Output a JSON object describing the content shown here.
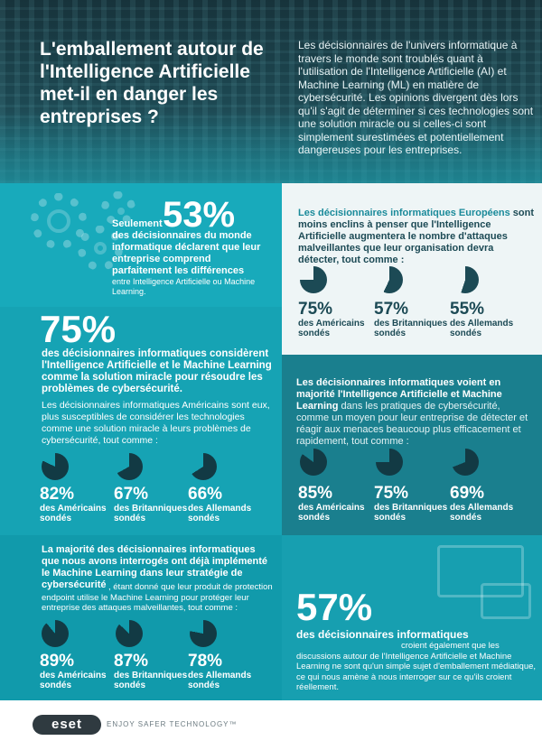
{
  "header": {
    "title": "L'emballement autour de l'Intelligence Artificielle met-il en danger les entreprises ?",
    "intro": "Les décisionnaires de l'univers informatique à travers le monde sont troublés quant à l'utilisation de l'Intelligence Artificielle (AI) et Machine Learning (ML) en matière de cybersécurité. Les opinions divergent dès lors qu'il s'agit de déterminer si ces technologies sont une solution miracle ou si celles-ci sont simplement surestimées et potentiellement dangereuses pour les entreprises."
  },
  "block1": {
    "prefix": "Seulement",
    "stat": "53%",
    "text": "des décisionnaires du monde informatique déclarent que leur entreprise comprend parfaitement les différences",
    "small": "entre Intelligence Artificielle ou Machine Learning."
  },
  "block2": {
    "stat": "75%",
    "lead": "des décisionnaires informatiques considèrent l'Intelligence Artificielle et le Machine Learning comme la solution miracle pour résoudre les problèmes de cybersécurité.",
    "body": "Les décisionnaires informatiques Américains sont eux, plus susceptibles de considérer les technologies comme une solution miracle à leurs problèmes de cybersécurité, tout comme :",
    "items": [
      {
        "pct": "82%",
        "label": "des Américains sondés",
        "value": 82
      },
      {
        "pct": "67%",
        "label": "des Britanniques sondés",
        "value": 67
      },
      {
        "pct": "66%",
        "label": "des Allemands sondés",
        "value": 66
      }
    ]
  },
  "block3": {
    "lead": "La majorité des décisionnaires informatiques que nous avons interrogés ont déjà implémenté le Machine Learning dans leur stratégie de cybersécurité",
    "body": ", étant donné que leur produit de protection endpoint utilise le Machine Learning pour protéger leur entreprise des attaques malveillantes, tout comme :",
    "items": [
      {
        "pct": "89%",
        "label": "des Américains sondés",
        "value": 89
      },
      {
        "pct": "87%",
        "label": "des Britanniques sondés",
        "value": 87
      },
      {
        "pct": "78%",
        "label": "des Allemands sondés",
        "value": 78
      }
    ]
  },
  "block4": {
    "lead": "Les décisionnaires informatiques Européens",
    "body": "sont moins enclins à penser que l'Intelligence Artificielle augmentera le nombre d'attaques malveillantes que leur organisation devra détecter, tout comme :",
    "items": [
      {
        "pct": "75%",
        "label": "des Américains sondés",
        "value": 75
      },
      {
        "pct": "57%",
        "label": "des Britanniques sondés",
        "value": 57
      },
      {
        "pct": "55%",
        "label": "des Allemands sondés",
        "value": 55
      }
    ]
  },
  "block5": {
    "lead": "Les décisionnaires informatiques voient en majorité l'Intelligence Artificielle et Machine Learning",
    "body": "dans les pratiques de cybersécurité, comme un moyen pour leur entreprise de détecter et réagir aux menaces beaucoup plus efficacement et rapidement, tout comme :",
    "items": [
      {
        "pct": "85%",
        "label": "des Américains sondés",
        "value": 85
      },
      {
        "pct": "75%",
        "label": "des Britanniques sondés",
        "value": 75
      },
      {
        "pct": "69%",
        "label": "des Allemands sondés",
        "value": 69
      }
    ]
  },
  "block6": {
    "stat": "57%",
    "lead": "des décisionnaires informatiques",
    "body": "croient également que les discussions autour de l'Intelligence Artificielle et Machine Learning ne sont qu'un simple sujet d'emballement médiatique, ce qui nous amène à nous interroger sur ce qu'ils croient réellement."
  },
  "footer": {
    "logo": "eset",
    "tagline": "ENJOY SAFER TECHNOLOGY™"
  },
  "colors": {
    "pie_dark": "#123a44",
    "teal": "#18aabb",
    "dark_teal": "#1a7f8e"
  }
}
